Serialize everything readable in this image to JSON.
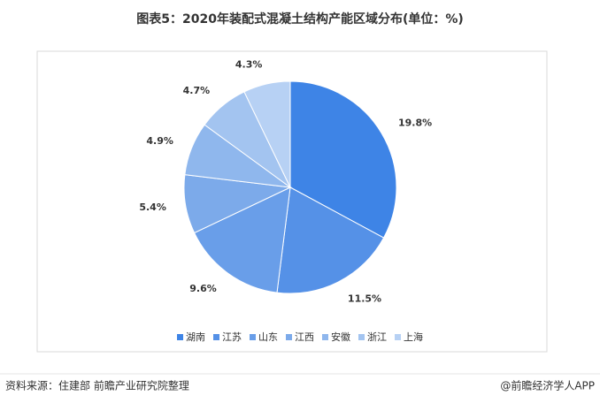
{
  "chart_data": {
    "type": "pie",
    "title": "图表5：2020年装配式混凝土结构产能区域分布(单位：%)",
    "categories": [
      "湖南",
      "江苏",
      "山东",
      "江西",
      "安徽",
      "浙江",
      "上海"
    ],
    "values": [
      19.8,
      11.5,
      9.6,
      5.4,
      4.9,
      4.7,
      4.3
    ],
    "value_labels": [
      "19.8%",
      "11.5%",
      "9.6%",
      "5.4%",
      "4.9%",
      "4.7%",
      "4.3%"
    ],
    "colors": [
      "#3e84e6",
      "#5591e7",
      "#699ee9",
      "#7caaea",
      "#8fb7ed",
      "#a3c4f0",
      "#b7d1f4"
    ],
    "legend": "bottom"
  },
  "footer": {
    "source": "资料来源：住建部 前瞻产业研究院整理",
    "credit": "@前瞻经济学人APP"
  }
}
